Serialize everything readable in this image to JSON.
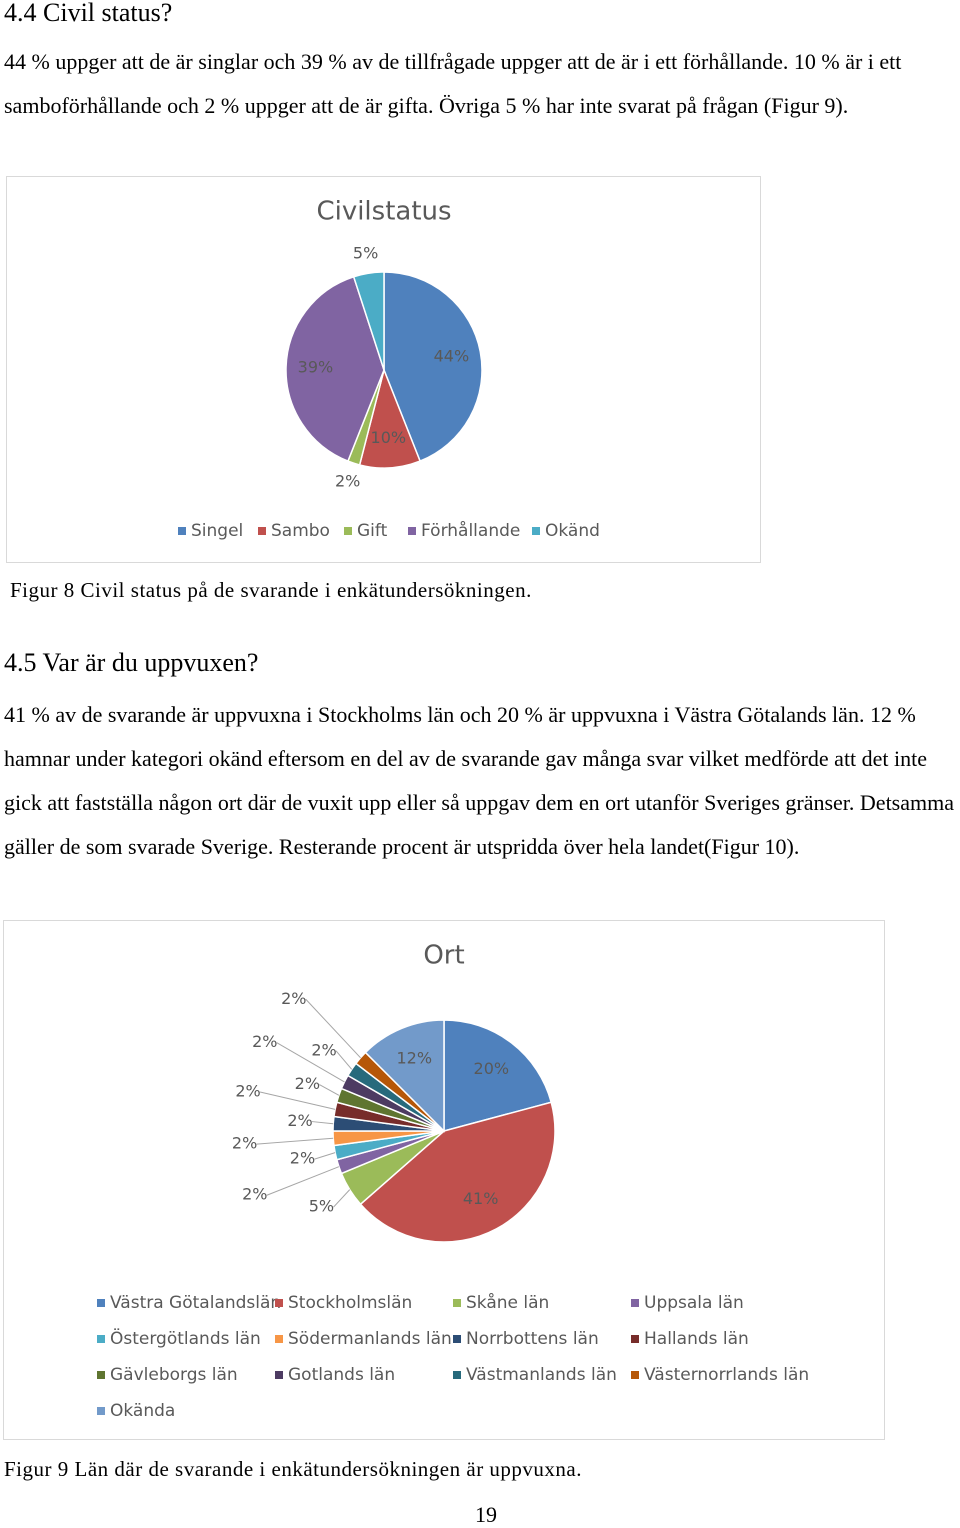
{
  "document": {
    "heading1": "4.4 Civil status?",
    "paragraph1": "44 % uppger att de är singlar och 39 % av de tillfrågade uppger att de är i ett förhållande. 10 % är i ett samboförhållande och 2 % uppger att de är gifta. Övriga 5 % har inte svarat på frågan (Figur 9).",
    "caption1": "Figur 8 Civil status på de svarande i enkätundersökningen.",
    "heading2": "4.5 Var är du uppvuxen?",
    "paragraph2": "41 % av de svarande är uppvuxna i Stockholms län och 20 % är uppvuxna i Västra Götalands län. 12 % hamnar under kategori okänd eftersom en del av de svarande gav många svar vilket medförde att det inte gick att fastställa någon ort där de vuxit upp eller så uppgav dem en ort utanför Sveriges gränser. Detsamma gäller de som svarade Sverige. Resterande procent är utspridda över hela landet(Figur 10).",
    "caption2": "Figur 9 Län där de svarande i enkätundersökningen är uppvuxna.",
    "page_number": "19"
  },
  "chart_data": [
    {
      "type": "pie",
      "title": "Civilstatus",
      "categories": [
        "Singel",
        "Sambo",
        "Gift",
        "Förhållande",
        "Okänd"
      ],
      "values": [
        44,
        10,
        2,
        39,
        5
      ],
      "value_labels": [
        "44%",
        "10%",
        "2%",
        "39%",
        "5%"
      ],
      "colors": [
        "#4f81bd",
        "#c0504d",
        "#9bbb59",
        "#8064a2",
        "#4bacc6"
      ]
    },
    {
      "type": "pie",
      "title": "Ort",
      "categories": [
        "Västra Götalandslän",
        "Stockholmslän",
        "Skåne län",
        "Uppsala län",
        "Östergötlands län",
        "Södermanlands län",
        "Norrbottens län",
        "Hallands län",
        "Gävleborgs län",
        "Gotlands län",
        "Västmanlands län",
        "Västernorrlands län",
        "Okända"
      ],
      "values": [
        20,
        41,
        5,
        2,
        2,
        2,
        2,
        2,
        2,
        2,
        2,
        2,
        12
      ],
      "value_labels": [
        "20%",
        "41%",
        "5%",
        "2%",
        "2%",
        "2%",
        "2%",
        "2%",
        "2%",
        "2%",
        "2%",
        "2%",
        "12%"
      ],
      "colors": [
        "#4f81bd",
        "#c0504d",
        "#9bbb59",
        "#8064a2",
        "#4bacc6",
        "#f79646",
        "#2c4d75",
        "#772c2a",
        "#5f7530",
        "#4d3b62",
        "#276a7c",
        "#b65708",
        "#729aca"
      ]
    }
  ]
}
